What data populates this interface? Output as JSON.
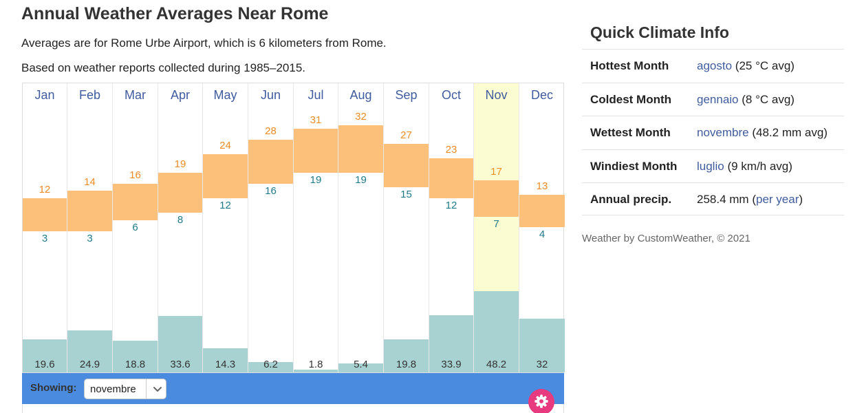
{
  "page": {
    "title": "Annual Weather Averages Near Rome",
    "subtitle_1": "Averages are for Rome Urbe Airport, which is 6 kilometers from Rome.",
    "subtitle_2": "Based on weather reports collected during 1985–2015."
  },
  "chart_data": {
    "type": "bar",
    "categories": [
      "Jan",
      "Feb",
      "Mar",
      "Apr",
      "May",
      "Jun",
      "Jul",
      "Aug",
      "Sep",
      "Oct",
      "Nov",
      "Dec"
    ],
    "series": [
      {
        "name": "",
        "values": [
          12,
          14,
          16,
          19,
          24,
          28,
          31,
          32,
          27,
          23,
          17,
          13
        ]
      },
      {
        "name": "",
        "values": [
          3,
          3,
          6,
          8,
          12,
          16,
          19,
          19,
          15,
          12,
          7,
          4
        ]
      },
      {
        "name": "",
        "values": [
          19.6,
          24.9,
          18.8,
          33.6,
          14.3,
          6.2,
          1.8,
          5.4,
          19.8,
          33.9,
          48.2,
          32
        ]
      }
    ],
    "highlighted_category": "Nov",
    "colors": {
      "temp_range": "#fdc07a",
      "high_label": "#ec8b1f",
      "low_label": "#1d7a8a",
      "precip": "#a8d2d2",
      "selected_column": "#fcfcd2",
      "month_label": "#3f5c9e"
    }
  },
  "controls": {
    "showing_label": "Showing:",
    "selected_month": "novembre",
    "settings_icon": "gear-icon",
    "dropdown_icon": "chevron-down-icon",
    "bar_color": "#4a8be0",
    "settings_color": "#e83a7e"
  },
  "sidebar": {
    "title": "Quick Climate Info",
    "rows": [
      {
        "label": "Hottest Month",
        "link": "agosto",
        "detail": "(25 °C avg)"
      },
      {
        "label": "Coldest Month",
        "link": "gennaio",
        "detail": "(8 °C avg)"
      },
      {
        "label": "Wettest Month",
        "link": "novembre",
        "detail": "(48.2 mm avg)"
      },
      {
        "label": "Windiest Month",
        "link": "luglio",
        "detail": "(9 km/h avg)"
      },
      {
        "label": "Annual precip.",
        "value": "258.4 mm",
        "open": "(",
        "link": "per year",
        "close": ")"
      }
    ],
    "credit": "Weather by CustomWeather, © 2021"
  }
}
